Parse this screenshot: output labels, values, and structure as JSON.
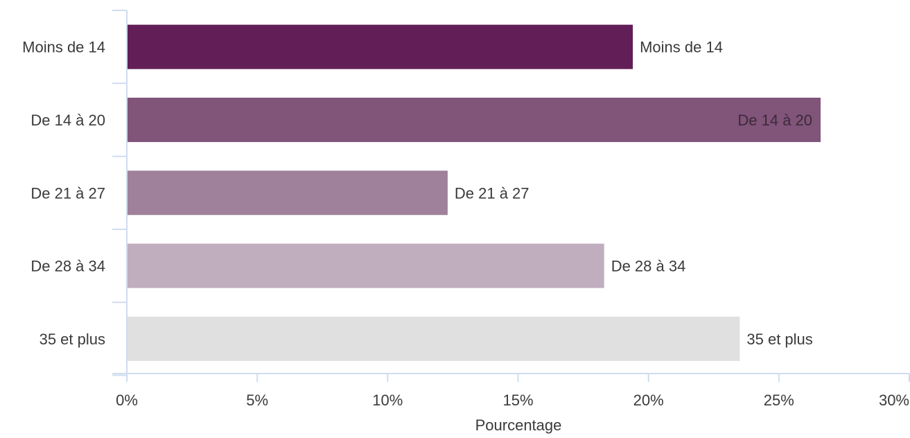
{
  "chart_data": {
    "type": "bar",
    "orientation": "horizontal",
    "title": "",
    "xlabel": "Pourcentage",
    "ylabel": "",
    "categories": [
      "Moins de 14",
      "De 14 à 20",
      "De 21 à 27",
      "De 28 à 34",
      "35 et plus"
    ],
    "values": [
      19.4,
      26.6,
      12.3,
      18.3,
      23.5
    ],
    "value_unit": "%",
    "xlim": [
      0,
      30
    ],
    "x_ticks": [
      0,
      5,
      10,
      15,
      20,
      25,
      30
    ],
    "x_tick_labels": [
      "0%",
      "5%",
      "10%",
      "15%",
      "20%",
      "25%",
      "30%"
    ],
    "colors": [
      "#621f57",
      "#81547a",
      "#9f819b",
      "#c0adbe",
      "#e0e0e0"
    ],
    "data_labels": [
      "Moins de 14",
      "De 14 à 20",
      "De 21 à 27",
      "De 28 à 34",
      "35 et plus"
    ],
    "data_label_inside": [
      false,
      true,
      false,
      false,
      false
    ],
    "axis_color": "#cfdcef",
    "grid": false,
    "legend": "none"
  }
}
